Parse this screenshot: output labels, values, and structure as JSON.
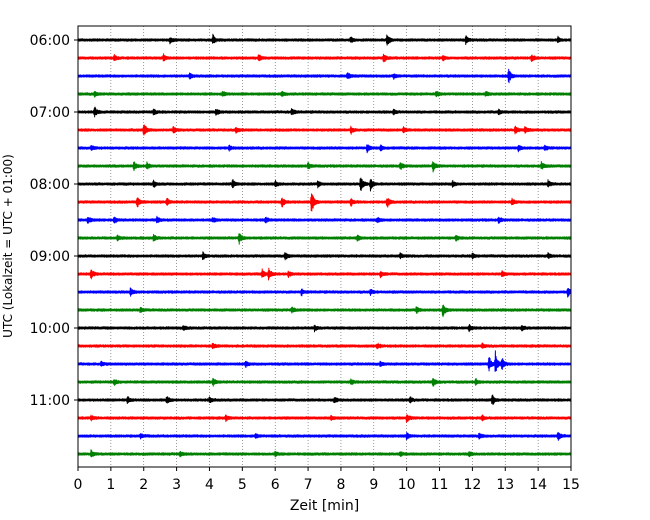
{
  "chart_data": {
    "type": "line",
    "title": "",
    "xlabel": "Zeit  [min]",
    "ylabel": "UTC (Lokalzeit = UTC + 01:00)",
    "xlim": [
      0,
      15
    ],
    "x_ticks": [
      0,
      1,
      2,
      3,
      4,
      5,
      6,
      7,
      8,
      9,
      10,
      11,
      12,
      13,
      14,
      15
    ],
    "x_grid": true,
    "y_ticks": [
      "06:00",
      "07:00",
      "08:00",
      "09:00",
      "10:00",
      "11:00"
    ],
    "trace_interval_min": 15,
    "trace_colors": [
      "#000000",
      "#ff0000",
      "#0000ff",
      "#008000"
    ],
    "traces": [
      {
        "start": "06:00",
        "color": "#000000",
        "events": [
          [
            2.8,
            1.5
          ],
          [
            4.1,
            2.5
          ],
          [
            8.3,
            1.5
          ],
          [
            9.4,
            3.5
          ],
          [
            11.8,
            1.8
          ],
          [
            14.6,
            1.5
          ]
        ]
      },
      {
        "start": "06:15",
        "color": "#ff0000",
        "events": [
          [
            1.1,
            1.6
          ],
          [
            2.6,
            1.8
          ],
          [
            5.5,
            2.2
          ],
          [
            9.3,
            2.6
          ],
          [
            11.1,
            1.3
          ],
          [
            13.8,
            2.0
          ]
        ]
      },
      {
        "start": "06:30",
        "color": "#0000ff",
        "events": [
          [
            3.4,
            1.4
          ],
          [
            8.2,
            2.0
          ],
          [
            9.6,
            1.2
          ],
          [
            13.1,
            4.0
          ]
        ]
      },
      {
        "start": "06:45",
        "color": "#008000",
        "events": [
          [
            0.5,
            1.4
          ],
          [
            4.4,
            1.4
          ],
          [
            6.2,
            1.5
          ],
          [
            10.9,
            1.4
          ],
          [
            12.4,
            1.5
          ]
        ]
      },
      {
        "start": "07:00",
        "color": "#000000",
        "events": [
          [
            0.5,
            2.6
          ],
          [
            2.3,
            1.6
          ],
          [
            4.2,
            1.8
          ],
          [
            6.5,
            2.0
          ],
          [
            9.6,
            1.4
          ],
          [
            12.8,
            1.4
          ]
        ]
      },
      {
        "start": "07:15",
        "color": "#ff0000",
        "events": [
          [
            2.0,
            4.0
          ],
          [
            2.9,
            1.8
          ],
          [
            4.8,
            1.6
          ],
          [
            8.3,
            2.0
          ],
          [
            9.9,
            1.5
          ],
          [
            13.3,
            2.2
          ],
          [
            13.6,
            1.8
          ]
        ]
      },
      {
        "start": "07:30",
        "color": "#0000ff",
        "events": [
          [
            0.4,
            1.4
          ],
          [
            4.6,
            1.4
          ],
          [
            8.8,
            2.5
          ],
          [
            9.2,
            1.6
          ],
          [
            13.4,
            1.5
          ],
          [
            14.2,
            1.5
          ]
        ]
      },
      {
        "start": "07:45",
        "color": "#008000",
        "events": [
          [
            1.7,
            2.2
          ],
          [
            2.1,
            1.6
          ],
          [
            7.0,
            1.8
          ],
          [
            9.8,
            2.2
          ],
          [
            10.8,
            3.0
          ],
          [
            14.1,
            2.6
          ]
        ]
      },
      {
        "start": "08:00",
        "color": "#000000",
        "events": [
          [
            2.3,
            1.8
          ],
          [
            4.7,
            2.3
          ],
          [
            6.0,
            1.6
          ],
          [
            7.3,
            1.6
          ],
          [
            8.6,
            4.5
          ],
          [
            8.9,
            3.2
          ],
          [
            11.4,
            1.6
          ],
          [
            14.3,
            1.5
          ]
        ]
      },
      {
        "start": "08:15",
        "color": "#ff0000",
        "events": [
          [
            1.8,
            2.8
          ],
          [
            2.7,
            1.8
          ],
          [
            6.2,
            3.2
          ],
          [
            7.1,
            7.0
          ],
          [
            8.3,
            2.0
          ],
          [
            9.4,
            3.0
          ],
          [
            13.2,
            2.0
          ]
        ]
      },
      {
        "start": "08:30",
        "color": "#0000ff",
        "events": [
          [
            0.3,
            1.8
          ],
          [
            1.1,
            2.0
          ],
          [
            2.4,
            1.6
          ],
          [
            4.1,
            1.5
          ],
          [
            5.7,
            1.6
          ],
          [
            9.1,
            1.4
          ],
          [
            12.8,
            1.6
          ]
        ]
      },
      {
        "start": "08:45",
        "color": "#008000",
        "events": [
          [
            1.2,
            1.4
          ],
          [
            2.3,
            1.6
          ],
          [
            4.9,
            3.2
          ],
          [
            8.5,
            1.5
          ],
          [
            11.5,
            1.4
          ]
        ]
      },
      {
        "start": "09:00",
        "color": "#000000",
        "events": [
          [
            3.8,
            1.8
          ],
          [
            6.3,
            1.8
          ],
          [
            9.8,
            1.4
          ],
          [
            12.0,
            1.5
          ],
          [
            14.3,
            1.5
          ]
        ]
      },
      {
        "start": "09:15",
        "color": "#ff0000",
        "events": [
          [
            0.4,
            2.8
          ],
          [
            5.6,
            2.4
          ],
          [
            5.8,
            3.0
          ],
          [
            6.4,
            1.6
          ],
          [
            9.2,
            1.6
          ],
          [
            12.9,
            1.5
          ]
        ]
      },
      {
        "start": "09:30",
        "color": "#0000ff",
        "events": [
          [
            1.6,
            2.0
          ],
          [
            6.8,
            1.6
          ],
          [
            8.9,
            1.4
          ],
          [
            14.9,
            2.4
          ]
        ]
      },
      {
        "start": "09:45",
        "color": "#008000",
        "events": [
          [
            1.9,
            1.4
          ],
          [
            6.5,
            1.6
          ],
          [
            10.3,
            1.8
          ],
          [
            11.1,
            3.6
          ]
        ]
      },
      {
        "start": "10:00",
        "color": "#000000",
        "events": [
          [
            3.2,
            1.4
          ],
          [
            7.2,
            1.4
          ],
          [
            11.9,
            1.6
          ],
          [
            13.5,
            1.4
          ]
        ]
      },
      {
        "start": "10:15",
        "color": "#ff0000",
        "events": [
          [
            4.1,
            1.6
          ],
          [
            9.1,
            1.4
          ],
          [
            12.3,
            1.3
          ]
        ]
      },
      {
        "start": "10:30",
        "color": "#0000ff",
        "events": [
          [
            0.7,
            1.4
          ],
          [
            5.1,
            1.6
          ],
          [
            9.2,
            1.4
          ],
          [
            12.5,
            4.5
          ],
          [
            12.7,
            6.0
          ],
          [
            12.9,
            3.0
          ]
        ]
      },
      {
        "start": "10:45",
        "color": "#008000",
        "events": [
          [
            1.1,
            1.4
          ],
          [
            4.1,
            2.0
          ],
          [
            8.3,
            1.5
          ],
          [
            10.8,
            2.6
          ],
          [
            12.1,
            1.4
          ]
        ]
      },
      {
        "start": "11:00",
        "color": "#000000",
        "events": [
          [
            1.5,
            1.6
          ],
          [
            2.7,
            2.0
          ],
          [
            4.0,
            1.6
          ],
          [
            7.8,
            1.5
          ],
          [
            10.1,
            1.5
          ],
          [
            12.6,
            2.8
          ]
        ]
      },
      {
        "start": "11:15",
        "color": "#ff0000",
        "events": [
          [
            0.4,
            1.3
          ],
          [
            4.5,
            1.3
          ],
          [
            7.7,
            1.3
          ],
          [
            10.0,
            2.6
          ],
          [
            12.3,
            1.3
          ]
        ]
      },
      {
        "start": "11:30",
        "color": "#0000ff",
        "events": [
          [
            1.9,
            1.4
          ],
          [
            5.4,
            1.4
          ],
          [
            10.0,
            1.8
          ],
          [
            12.2,
            1.4
          ],
          [
            14.6,
            2.6
          ]
        ]
      },
      {
        "start": "11:45",
        "color": "#008000",
        "events": [
          [
            0.4,
            1.8
          ],
          [
            3.1,
            1.4
          ],
          [
            6.0,
            1.4
          ],
          [
            9.8,
            1.4
          ],
          [
            11.9,
            1.4
          ]
        ]
      }
    ]
  }
}
